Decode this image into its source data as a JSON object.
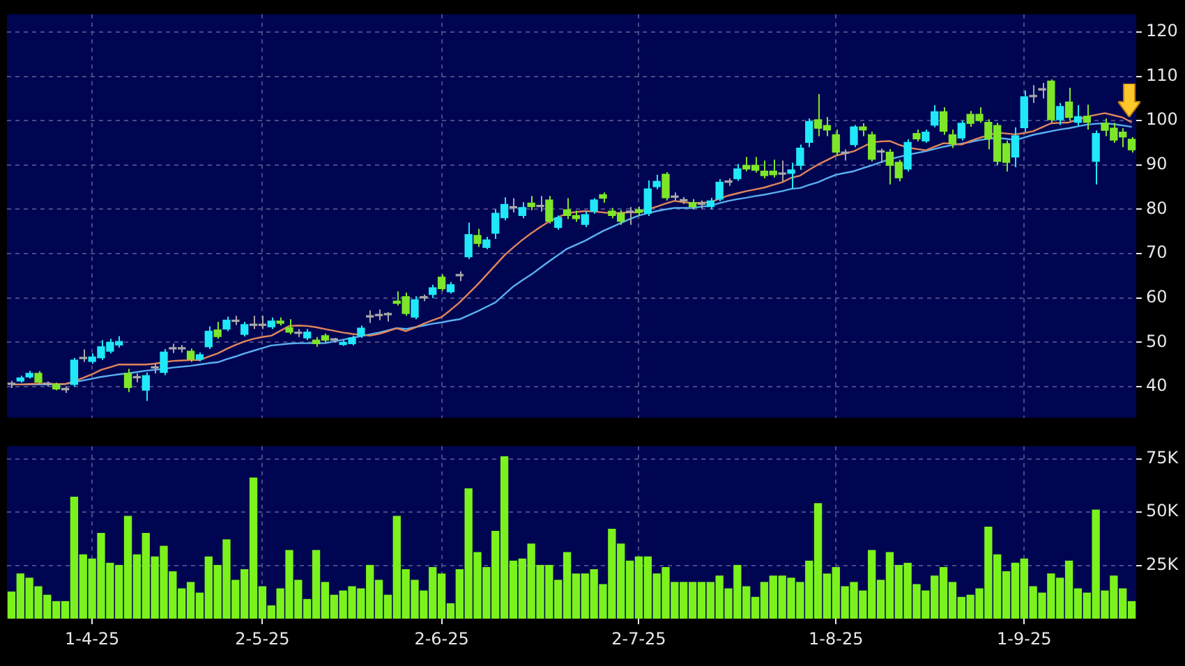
{
  "chart_data": [
    {
      "type": "candlestick",
      "ohlc": [
        [
          40.5,
          41.3,
          39.7,
          40.5
        ],
        [
          41.3,
          42.5,
          40.9,
          42.0
        ],
        [
          42.2,
          43.6,
          41.8,
          43.0
        ],
        [
          43.0,
          43.5,
          40.6,
          41.0
        ],
        [
          40.5,
          41.2,
          40.0,
          40.5
        ],
        [
          40.5,
          40.9,
          39.2,
          39.5
        ],
        [
          39.3,
          40.0,
          38.6,
          39.3
        ],
        [
          40.5,
          46.5,
          40.0,
          46.0
        ],
        [
          46.3,
          48.4,
          45.6,
          46.3
        ],
        [
          45.7,
          47.5,
          45.2,
          46.7
        ],
        [
          46.5,
          50.5,
          46.0,
          49.0
        ],
        [
          48.0,
          50.8,
          47.5,
          50.0
        ],
        [
          49.4,
          51.4,
          48.8,
          50.2
        ],
        [
          43.0,
          44.0,
          38.8,
          39.8
        ],
        [
          42.0,
          43.0,
          41.0,
          42.0
        ],
        [
          39.2,
          43.2,
          36.8,
          42.5
        ],
        [
          44.2,
          45.3,
          43.0,
          44.2
        ],
        [
          43.2,
          48.5,
          42.6,
          47.8
        ],
        [
          48.5,
          49.7,
          47.6,
          48.5
        ],
        [
          48.5,
          49.4,
          47.7,
          48.5
        ],
        [
          48.0,
          48.6,
          45.6,
          46.2
        ],
        [
          46.2,
          47.7,
          45.7,
          47.2
        ],
        [
          49.0,
          53.6,
          48.5,
          52.5
        ],
        [
          52.8,
          54.6,
          50.8,
          51.3
        ],
        [
          53.0,
          55.8,
          52.5,
          55.0
        ],
        [
          54.7,
          56.0,
          53.9,
          54.7
        ],
        [
          51.8,
          54.6,
          51.3,
          54.0
        ],
        [
          53.8,
          56.0,
          53.0,
          53.8
        ],
        [
          53.8,
          56.0,
          53.0,
          53.8
        ],
        [
          53.5,
          55.6,
          53.0,
          54.8
        ],
        [
          54.8,
          55.6,
          53.8,
          54.3
        ],
        [
          53.3,
          55.2,
          51.8,
          52.3
        ],
        [
          52.0,
          53.0,
          51.2,
          52.0
        ],
        [
          51.0,
          53.0,
          50.5,
          52.3
        ],
        [
          50.5,
          51.2,
          49.0,
          49.7
        ],
        [
          51.5,
          52.0,
          50.0,
          50.5
        ],
        [
          50.5,
          51.0,
          49.9,
          50.5
        ],
        [
          49.5,
          50.5,
          49.2,
          50.0
        ],
        [
          49.7,
          51.5,
          49.3,
          51.0
        ],
        [
          51.5,
          53.8,
          51.0,
          53.2
        ],
        [
          55.7,
          57.2,
          54.4,
          55.7
        ],
        [
          56.0,
          57.4,
          55.0,
          56.0
        ],
        [
          56.2,
          56.8,
          54.7,
          56.2
        ],
        [
          59.3,
          61.5,
          58.3,
          58.8
        ],
        [
          60.3,
          61.2,
          56.0,
          56.5
        ],
        [
          55.7,
          60.4,
          55.2,
          59.6
        ],
        [
          60.0,
          60.8,
          59.3,
          60.0
        ],
        [
          60.8,
          63.0,
          60.0,
          62.3
        ],
        [
          64.7,
          65.3,
          61.6,
          62.1
        ],
        [
          61.4,
          63.6,
          61.0,
          63.0
        ],
        [
          65.0,
          66.0,
          63.8,
          65.0
        ],
        [
          69.3,
          77.0,
          68.8,
          74.3
        ],
        [
          74.1,
          75.6,
          71.5,
          72.3
        ],
        [
          71.4,
          73.8,
          71.0,
          73.1
        ],
        [
          74.6,
          80.0,
          73.3,
          79.1
        ],
        [
          78.1,
          82.7,
          77.5,
          81.1
        ],
        [
          80.3,
          82.5,
          79.3,
          80.3
        ],
        [
          78.6,
          81.6,
          78.0,
          80.4
        ],
        [
          81.4,
          83.0,
          79.8,
          80.6
        ],
        [
          80.6,
          83.0,
          79.5,
          80.6
        ],
        [
          82.1,
          83.0,
          76.8,
          77.3
        ],
        [
          75.9,
          78.6,
          75.4,
          78.1
        ],
        [
          79.9,
          82.5,
          77.8,
          78.6
        ],
        [
          78.6,
          79.7,
          77.2,
          77.9
        ],
        [
          76.6,
          79.5,
          76.0,
          78.8
        ],
        [
          79.6,
          82.5,
          79.0,
          82.1
        ],
        [
          83.3,
          83.8,
          81.5,
          82.5
        ],
        [
          79.6,
          80.3,
          78.0,
          78.6
        ],
        [
          79.1,
          79.8,
          76.5,
          77.3
        ],
        [
          79.3,
          80.5,
          76.5,
          79.3
        ],
        [
          79.9,
          80.6,
          78.5,
          79.3
        ],
        [
          79.1,
          86.5,
          78.5,
          84.6
        ],
        [
          85.1,
          87.8,
          84.5,
          86.3
        ],
        [
          87.9,
          88.4,
          82.0,
          82.6
        ],
        [
          82.7,
          83.8,
          82.0,
          82.7
        ],
        [
          81.9,
          82.8,
          81.2,
          81.9
        ],
        [
          81.5,
          82.3,
          80.0,
          80.6
        ],
        [
          81.1,
          82.0,
          80.2,
          81.1
        ],
        [
          80.6,
          82.6,
          80.0,
          81.9
        ],
        [
          82.3,
          86.8,
          81.8,
          86.1
        ],
        [
          86.1,
          87.0,
          85.3,
          86.1
        ],
        [
          86.9,
          90.2,
          86.4,
          89.1
        ],
        [
          89.9,
          91.8,
          88.6,
          89.1
        ],
        [
          89.9,
          91.8,
          88.3,
          88.8
        ],
        [
          88.6,
          91.0,
          87.0,
          87.6
        ],
        [
          88.6,
          91.2,
          87.2,
          87.8
        ],
        [
          87.9,
          91.0,
          86.3,
          87.9
        ],
        [
          88.1,
          90.5,
          84.7,
          88.9
        ],
        [
          89.9,
          94.6,
          88.9,
          93.8
        ],
        [
          95.1,
          100.5,
          94.0,
          99.8
        ],
        [
          100.2,
          106.0,
          96.5,
          98.3
        ],
        [
          98.9,
          100.8,
          96.5,
          97.9
        ],
        [
          96.8,
          98.0,
          92.0,
          92.9
        ],
        [
          92.6,
          93.5,
          91.0,
          92.6
        ],
        [
          94.6,
          99.0,
          94.0,
          98.6
        ],
        [
          98.6,
          99.4,
          96.5,
          97.9
        ],
        [
          96.8,
          97.5,
          90.8,
          91.3
        ],
        [
          92.9,
          93.7,
          90.5,
          92.9
        ],
        [
          92.9,
          93.6,
          85.6,
          89.9
        ],
        [
          90.6,
          91.2,
          86.3,
          87.1
        ],
        [
          89.1,
          95.8,
          88.5,
          95.1
        ],
        [
          97.1,
          98.0,
          95.3,
          95.9
        ],
        [
          95.4,
          98.0,
          95.0,
          97.4
        ],
        [
          99.0,
          103.5,
          98.5,
          102.0
        ],
        [
          102.0,
          103.0,
          96.8,
          97.6
        ],
        [
          96.8,
          98.0,
          93.8,
          94.8
        ],
        [
          96.1,
          100.0,
          95.5,
          99.4
        ],
        [
          101.4,
          102.2,
          98.6,
          99.4
        ],
        [
          101.4,
          103.0,
          99.5,
          100.0
        ],
        [
          99.6,
          100.3,
          93.5,
          95.9
        ],
        [
          98.9,
          99.5,
          90.0,
          90.8
        ],
        [
          94.8,
          95.5,
          88.5,
          90.6
        ],
        [
          91.8,
          98.5,
          89.5,
          96.6
        ],
        [
          98.4,
          106.8,
          97.5,
          105.4
        ],
        [
          105.4,
          108.0,
          104.0,
          105.4
        ],
        [
          106.9,
          108.5,
          105.0,
          106.9
        ],
        [
          108.9,
          109.3,
          99.6,
          100.2
        ],
        [
          100.2,
          104.0,
          99.0,
          103.2
        ],
        [
          104.2,
          107.4,
          100.0,
          100.7
        ],
        [
          99.6,
          103.5,
          98.8,
          100.9
        ],
        [
          101.0,
          103.6,
          98.0,
          99.6
        ],
        [
          90.8,
          97.8,
          85.6,
          97.1
        ],
        [
          99.4,
          100.5,
          96.5,
          97.8
        ],
        [
          98.3,
          99.5,
          95.0,
          95.6
        ],
        [
          97.4,
          98.3,
          94.0,
          96.3
        ],
        [
          95.8,
          96.3,
          92.8,
          93.4
        ]
      ],
      "colors": [
        "#a8a8a8",
        "#20e8f8",
        "#20e8f8",
        "#7ee628",
        "#a8a8a8",
        "#7ee628",
        "#a8a8a8",
        "#20e8f8",
        "#a8a8a8",
        "#20e8f8",
        "#20e8f8",
        "#20e8f8",
        "#20e8f8",
        "#7ee628",
        "#a8a8a8",
        "#20e8f8",
        "#a8a8a8",
        "#20e8f8",
        "#a8a8a8",
        "#a8a8a8",
        "#7ee628",
        "#20e8f8",
        "#20e8f8",
        "#7ee628",
        "#20e8f8",
        "#a8a8a8",
        "#20e8f8",
        "#a8a8a8",
        "#a8a8a8",
        "#20e8f8",
        "#7ee628",
        "#7ee628",
        "#a8a8a8",
        "#20e8f8",
        "#7ee628",
        "#7ee628",
        "#a8a8a8",
        "#20e8f8",
        "#20e8f8",
        "#20e8f8",
        "#a8a8a8",
        "#a8a8a8",
        "#a8a8a8",
        "#7ee628",
        "#7ee628",
        "#20e8f8",
        "#a8a8a8",
        "#20e8f8",
        "#7ee628",
        "#20e8f8",
        "#a8a8a8",
        "#20e8f8",
        "#7ee628",
        "#20e8f8",
        "#20e8f8",
        "#20e8f8",
        "#a8a8a8",
        "#20e8f8",
        "#7ee628",
        "#a8a8a8",
        "#7ee628",
        "#20e8f8",
        "#7ee628",
        "#7ee628",
        "#20e8f8",
        "#20e8f8",
        "#7ee628",
        "#7ee628",
        "#7ee628",
        "#a8a8a8",
        "#7ee628",
        "#20e8f8",
        "#20e8f8",
        "#7ee628",
        "#a8a8a8",
        "#a8a8a8",
        "#7ee628",
        "#a8a8a8",
        "#20e8f8",
        "#20e8f8",
        "#a8a8a8",
        "#20e8f8",
        "#7ee628",
        "#7ee628",
        "#7ee628",
        "#7ee628",
        "#a8a8a8",
        "#20e8f8",
        "#20e8f8",
        "#20e8f8",
        "#7ee628",
        "#7ee628",
        "#7ee628",
        "#a8a8a8",
        "#20e8f8",
        "#7ee628",
        "#7ee628",
        "#a8a8a8",
        "#7ee628",
        "#7ee628",
        "#20e8f8",
        "#7ee628",
        "#20e8f8",
        "#20e8f8",
        "#7ee628",
        "#7ee628",
        "#20e8f8",
        "#7ee628",
        "#7ee628",
        "#7ee628",
        "#7ee628",
        "#7ee628",
        "#20e8f8",
        "#20e8f8",
        "#a8a8a8",
        "#a8a8a8",
        "#7ee628",
        "#20e8f8",
        "#7ee628",
        "#20e8f8",
        "#7ee628",
        "#20e8f8",
        "#7ee628",
        "#7ee628",
        "#7ee628",
        "#7ee628"
      ],
      "series": [
        {
          "type": "line",
          "color": "#e0875a",
          "values": [
            40.5,
            40.5,
            40.6,
            40.7,
            40.7,
            40.6,
            40.6,
            41.2,
            42.0,
            42.8,
            43.8,
            44.4,
            45.0,
            45.0,
            45.0,
            45.0,
            45.2,
            45.5,
            45.8,
            45.9,
            46.0,
            46.0,
            46.8,
            47.5,
            48.5,
            49.4,
            50.2,
            50.8,
            51.2,
            51.5,
            52.6,
            53.7,
            53.8,
            53.7,
            53.4,
            53.0,
            52.6,
            52.2,
            51.9,
            51.7,
            51.5,
            51.9,
            52.5,
            53.2,
            52.5,
            53.3,
            54.2,
            55.0,
            55.7,
            57.3,
            59.0,
            61.0,
            63.0,
            65.2,
            67.4,
            69.6,
            71.4,
            73.1,
            74.6,
            76.0,
            77.3,
            78.2,
            79.1,
            79.4,
            79.6,
            79.5,
            79.3,
            79.1,
            79.2,
            79.3,
            79.3,
            80.0,
            80.6,
            81.3,
            81.9,
            81.6,
            81.4,
            81.5,
            81.6,
            82.4,
            83.1,
            83.6,
            84.1,
            84.5,
            84.9,
            85.5,
            86.1,
            87.1,
            87.6,
            88.9,
            90.1,
            91.1,
            92.1,
            92.6,
            93.1,
            94.1,
            95.1,
            95.3,
            95.4,
            94.6,
            93.9,
            93.6,
            93.3,
            94.1,
            94.9,
            94.8,
            94.6,
            95.4,
            96.1,
            96.7,
            97.3,
            97.1,
            96.9,
            97.2,
            97.6,
            98.5,
            99.4,
            99.5,
            99.6,
            100.2,
            100.9,
            101.3,
            101.7,
            101.2,
            100.7,
            99.6
          ]
        },
        {
          "type": "line",
          "color": "#5ab0f0",
          "values": [
            40.5,
            40.5,
            40.5,
            40.5,
            40.5,
            40.5,
            40.6,
            41.0,
            41.4,
            41.8,
            42.2,
            42.5,
            42.8,
            43.0,
            43.3,
            43.6,
            43.8,
            44.0,
            44.3,
            44.5,
            44.7,
            45.0,
            45.3,
            45.5,
            46.2,
            46.8,
            47.5,
            48.1,
            48.7,
            49.3,
            49.5,
            49.7,
            49.8,
            49.8,
            49.8,
            49.8,
            50.2,
            50.6,
            51.0,
            51.4,
            51.8,
            52.2,
            52.7,
            53.2,
            53.0,
            53.4,
            53.8,
            54.2,
            54.5,
            54.9,
            55.2,
            56.1,
            57.0,
            58.0,
            59.0,
            60.8,
            62.6,
            64.0,
            65.3,
            66.8,
            68.3,
            69.7,
            71.1,
            72.0,
            72.9,
            74.0,
            75.1,
            76.0,
            76.9,
            77.8,
            78.6,
            79.1,
            79.6,
            80.0,
            80.3,
            80.3,
            80.3,
            80.6,
            80.8,
            81.4,
            81.9,
            82.3,
            82.6,
            83.0,
            83.3,
            83.7,
            84.1,
            84.6,
            84.8,
            85.5,
            86.1,
            87.0,
            87.8,
            88.2,
            88.6,
            89.3,
            89.9,
            90.6,
            91.3,
            91.8,
            92.3,
            92.7,
            93.1,
            93.6,
            94.1,
            94.5,
            94.8,
            95.2,
            95.6,
            95.9,
            96.1,
            95.9,
            95.6,
            96.2,
            96.8,
            97.2,
            97.6,
            98.0,
            98.3,
            98.7,
            99.1,
            99.3,
            99.4,
            99.2,
            98.9,
            98.6
          ]
        }
      ],
      "ylim": [
        33,
        124
      ],
      "yticks": [
        40,
        50,
        60,
        70,
        80,
        90,
        100,
        110,
        120
      ],
      "grid": true,
      "tick_labels": "y"
    },
    {
      "type": "bar",
      "categories": [
        null,
        null,
        null,
        null,
        null,
        null,
        null,
        null,
        null,
        "1-4-25",
        null,
        null,
        null,
        null,
        null,
        null,
        null,
        null,
        null,
        null,
        null,
        null,
        null,
        null,
        null,
        null,
        null,
        null,
        "2-5-25",
        null,
        null,
        null,
        null,
        null,
        null,
        null,
        null,
        null,
        null,
        null,
        null,
        null,
        null,
        null,
        null,
        null,
        null,
        null,
        "2-6-25",
        null,
        null,
        null,
        null,
        null,
        null,
        null,
        null,
        null,
        null,
        null,
        null,
        null,
        null,
        null,
        null,
        null,
        null,
        null,
        null,
        null,
        "2-7-25",
        null,
        null,
        null,
        null,
        null,
        null,
        null,
        null,
        null,
        null,
        null,
        null,
        null,
        null,
        null,
        null,
        null,
        null,
        null,
        null,
        null,
        "1-8-25",
        null,
        null,
        null,
        null,
        null,
        null,
        null,
        null,
        null,
        null,
        null,
        null,
        null,
        null,
        null,
        null,
        null,
        null,
        null,
        null,
        "1-9-25",
        null,
        null,
        null,
        null,
        null,
        null,
        null,
        null,
        null,
        null,
        null,
        null
      ],
      "values": [
        12500,
        21000,
        19000,
        15000,
        11000,
        8000,
        8000,
        57000,
        30000,
        28000,
        40000,
        26000,
        25000,
        48000,
        30000,
        40000,
        29000,
        34000,
        22000,
        14000,
        17000,
        12000,
        29000,
        25000,
        37000,
        18000,
        23000,
        66000,
        15000,
        6000,
        14000,
        32000,
        18000,
        9000,
        32000,
        17000,
        11000,
        13000,
        15000,
        14000,
        25000,
        18000,
        11000,
        48000,
        23000,
        18000,
        13000,
        24000,
        21000,
        7000,
        23000,
        61000,
        31000,
        24000,
        41000,
        76000,
        27000,
        28000,
        35000,
        25000,
        25000,
        18000,
        31000,
        21000,
        21000,
        23000,
        16000,
        42000,
        35000,
        27000,
        29000,
        29000,
        21000,
        24000,
        17000,
        17000,
        17000,
        17000,
        17000,
        20000,
        14000,
        25000,
        15000,
        10000,
        17000,
        20000,
        20000,
        19000,
        17000,
        27000,
        54000,
        21000,
        24000,
        15000,
        17000,
        13000,
        32000,
        18000,
        31000,
        25000,
        26000,
        16000,
        13000,
        20000,
        24000,
        17000,
        10000,
        11000,
        14000,
        43000,
        30000,
        22000,
        26000,
        28000,
        15000,
        12000,
        21000,
        19000,
        27000,
        14000,
        12000,
        51000,
        13000,
        20000,
        14000,
        8000
      ],
      "color": "#7cf21c",
      "ylim": [
        0,
        81000
      ],
      "yticks": [
        {
          "value": 25000,
          "label": "25K"
        },
        {
          "value": 50000,
          "label": "50K"
        },
        {
          "value": 75000,
          "label": "75K"
        }
      ],
      "grid": true
    }
  ]
}
